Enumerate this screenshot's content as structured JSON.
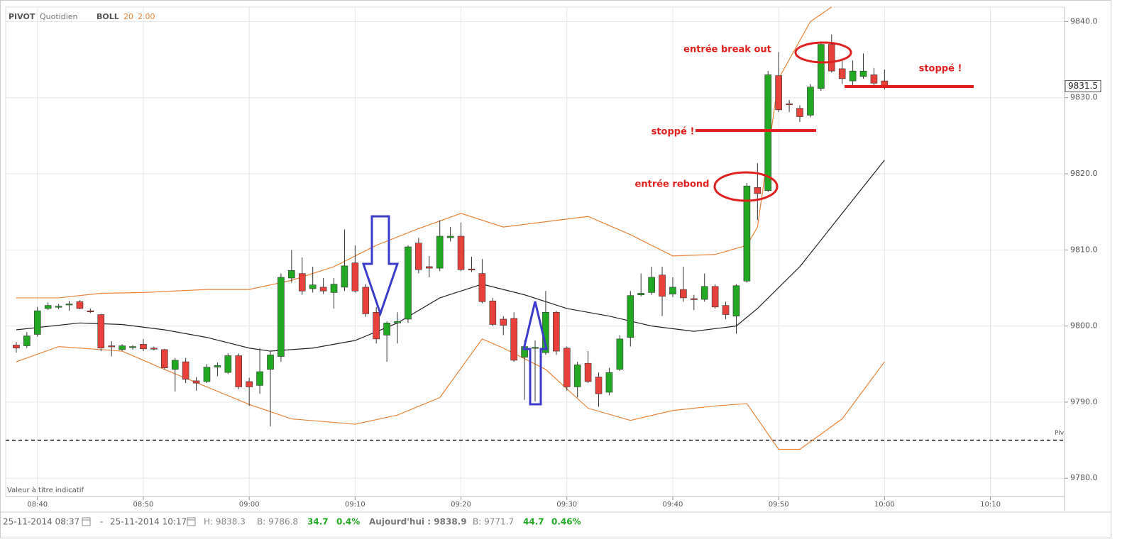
{
  "chart_data": {
    "type": "candlestick",
    "header": [
      "PIVOT",
      "Quotidien",
      "BOLL",
      "20",
      "2.00"
    ],
    "note": "Valeur à titre indicatif",
    "xlim": [
      "08:37",
      "10:17"
    ],
    "xticks": [
      "08:40",
      "08:50",
      "09:00",
      "09:10",
      "09:20",
      "09:30",
      "09:40",
      "09:50",
      "10:00",
      "10:10"
    ],
    "ylim": [
      9777.6,
      9841.9
    ],
    "yticks": [
      {
        "value": 9780,
        "label": "9780.0"
      },
      {
        "value": 9790,
        "label": "9790.0"
      },
      {
        "value": 9800,
        "label": "9800.0"
      },
      {
        "value": 9810,
        "label": "9810.0"
      },
      {
        "value": 9820,
        "label": "9820.0"
      },
      {
        "value": 9830,
        "label": "9830.0"
      },
      {
        "value": 9840,
        "label": "9840.0"
      }
    ],
    "grid": true,
    "up_color": "#22a822",
    "down_color": "#e8403a",
    "candles": {
      "x": [
        "08:38",
        "08:39",
        "08:40",
        "08:41",
        "08:42",
        "08:43",
        "08:44",
        "08:45",
        "08:46",
        "08:47",
        "08:48",
        "08:49",
        "08:50",
        "08:51",
        "08:52",
        "08:53",
        "08:54",
        "08:55",
        "08:56",
        "08:57",
        "08:58",
        "08:59",
        "09:00",
        "09:01",
        "09:02",
        "09:03",
        "09:04",
        "09:05",
        "09:06",
        "09:07",
        "09:08",
        "09:09",
        "09:10",
        "09:11",
        "09:12",
        "09:13",
        "09:14",
        "09:15",
        "09:16",
        "09:17",
        "09:18",
        "09:19",
        "09:20",
        "09:21",
        "09:22",
        "09:23",
        "09:24",
        "09:25",
        "09:26",
        "09:27",
        "09:28",
        "09:29",
        "09:30",
        "09:31",
        "09:32",
        "09:33",
        "09:34",
        "09:35",
        "09:36",
        "09:37",
        "09:38",
        "09:39",
        "09:40",
        "09:41",
        "09:42",
        "09:43",
        "09:44",
        "09:45",
        "09:46",
        "09:47",
        "09:48",
        "09:49",
        "09:50",
        "09:51",
        "09:52",
        "09:53",
        "09:54",
        "09:55",
        "09:56",
        "09:57",
        "09:58",
        "09:59",
        "10:00"
      ],
      "open": [
        9797.5,
        9797.4,
        9798.9,
        9802.3,
        9802.5,
        9802.8,
        9803.2,
        9802.0,
        9801.5,
        9797.4,
        9796.9,
        9797.2,
        9797.6,
        9797.1,
        9796.9,
        9794.3,
        9795.3,
        9792.8,
        9792.7,
        9794.6,
        9793.9,
        9796.1,
        9792.7,
        9792.2,
        9794.3,
        9796.0,
        9806.3,
        9806.9,
        9804.9,
        9805.1,
        9804.4,
        9805.1,
        9808.3,
        9805.1,
        9801.8,
        9798.8,
        9800.4,
        9800.9,
        9810.9,
        9807.8,
        9807.6,
        9811.6,
        9811.8,
        9807.5,
        9806.9,
        9803.3,
        9800.9,
        9801.0,
        9795.9,
        9797.1,
        9796.5,
        9801.8,
        9797.1,
        9792.0,
        9795.1,
        9793.3,
        9791.3,
        9794.3,
        9798.5,
        9804.1,
        9804.4,
        9806.7,
        9804.2,
        9804.8,
        9803.6,
        9803.5,
        9805.2,
        9802.7,
        9801.3,
        9805.9,
        9818.2,
        9817.8,
        9832.9,
        9829.2,
        9828.6,
        9827.7,
        9831.2,
        9837.0,
        9833.8,
        9832.2,
        9832.8,
        9833.0,
        9832.2
      ],
      "high": [
        9797.9,
        9799.2,
        9802.5,
        9803.1,
        9802.9,
        9803.3,
        9803.4,
        9802.3,
        9801.6,
        9798.0,
        9797.6,
        9797.5,
        9798.3,
        9797.3,
        9797.0,
        9795.8,
        9795.8,
        9793.3,
        9795.0,
        9795.2,
        9796.4,
        9796.4,
        9793.2,
        9797.1,
        9796.7,
        9806.9,
        9810.0,
        9809.0,
        9807.8,
        9806.3,
        9806.3,
        9812.7,
        9810.6,
        9805.5,
        9802.5,
        9800.6,
        9801.8,
        9810.6,
        9811.6,
        9809.2,
        9813.9,
        9813.0,
        9813.6,
        9809.1,
        9808.8,
        9803.7,
        9801.3,
        9801.8,
        9798.1,
        9798.1,
        9804.6,
        9802.0,
        9797.3,
        9795.3,
        9796.7,
        9793.9,
        9794.5,
        9798.8,
        9804.6,
        9806.9,
        9807.8,
        9807.8,
        9806.4,
        9807.8,
        9804.1,
        9806.9,
        9805.5,
        9803.2,
        9805.5,
        9818.8,
        9821.4,
        9833.5,
        9836.0,
        9829.7,
        9829.0,
        9831.8,
        9837.4,
        9838.3,
        9834.9,
        9834.9,
        9835.8,
        9833.9,
        9833.7
      ],
      "low": [
        9796.5,
        9797.1,
        9798.6,
        9802.1,
        9802.2,
        9802.0,
        9802.2,
        9801.7,
        9796.7,
        9796.0,
        9796.7,
        9796.9,
        9796.7,
        9796.8,
        9794.3,
        9791.4,
        9792.5,
        9791.5,
        9792.5,
        9793.4,
        9793.7,
        9791.7,
        9789.5,
        9791.1,
        9786.8,
        9795.3,
        9805.7,
        9804.1,
        9804.4,
        9804.2,
        9802.3,
        9804.6,
        9804.4,
        9801.2,
        9797.7,
        9795.3,
        9797.7,
        9800.4,
        9806.9,
        9806.4,
        9807.2,
        9811.1,
        9807.2,
        9807.1,
        9803.0,
        9800.0,
        9798.8,
        9795.3,
        9790.3,
        9790.1,
        9796.2,
        9796.2,
        9791.5,
        9790.6,
        9792.5,
        9789.4,
        9790.9,
        9794.1,
        9797.3,
        9803.9,
        9804.1,
        9801.3,
        9803.8,
        9803.2,
        9802.1,
        9803.2,
        9802.3,
        9800.9,
        9799.0,
        9805.7,
        9813.9,
        9817.6,
        9828.1,
        9828.1,
        9826.8,
        9827.4,
        9830.9,
        9833.3,
        9831.8,
        9831.6,
        9832.5,
        9831.6,
        9831.1
      ],
      "close": [
        9797.1,
        9798.7,
        9802.0,
        9802.7,
        9802.6,
        9802.9,
        9802.3,
        9801.9,
        9797.1,
        9797.3,
        9797.4,
        9797.3,
        9797.0,
        9797.0,
        9794.5,
        9795.5,
        9793.0,
        9792.5,
        9794.6,
        9794.8,
        9796.1,
        9792.0,
        9792.0,
        9794.0,
        9796.2,
        9806.4,
        9807.3,
        9804.6,
        9805.4,
        9804.6,
        9805.5,
        9807.9,
        9804.6,
        9801.6,
        9798.3,
        9800.4,
        9800.6,
        9810.4,
        9807.4,
        9807.6,
        9811.8,
        9811.8,
        9807.4,
        9807.4,
        9803.2,
        9800.2,
        9800.1,
        9795.5,
        9797.3,
        9797.2,
        9801.8,
        9796.7,
        9792.0,
        9794.9,
        9792.7,
        9791.1,
        9793.9,
        9798.3,
        9804.0,
        9804.3,
        9806.4,
        9803.9,
        9805.1,
        9803.7,
        9803.5,
        9805.2,
        9802.5,
        9801.5,
        9805.3,
        9818.4,
        9817.4,
        9833.0,
        9828.4,
        9829.1,
        9827.5,
        9831.4,
        9837.0,
        9833.5,
        9832.5,
        9833.5,
        9833.5,
        9831.9,
        9831.4
      ]
    },
    "bands": [
      {
        "color": "#e8843a",
        "x": [
          "08:38",
          "08:42",
          "08:46",
          "08:50",
          "08:56",
          "09:00",
          "09:04",
          "09:08",
          "09:12",
          "09:16",
          "09:20",
          "09:24",
          "09:28",
          "09:32",
          "09:36",
          "09:40",
          "09:44",
          "09:47",
          "09:48",
          "09:50",
          "09:53",
          "09:55"
        ],
        "values": [
          9803.7,
          9803.7,
          9804.3,
          9804.4,
          9804.8,
          9804.8,
          9806.0,
          9807.8,
          9810.6,
          9812.8,
          9814.8,
          9813.0,
          9813.7,
          9814.4,
          9812.0,
          9809.2,
          9809.4,
          9810.6,
          9813.0,
          9832.5,
          9840.0,
          9841.9
        ]
      },
      {
        "color": "#222222",
        "x": [
          "08:38",
          "08:44",
          "08:48",
          "08:52",
          "08:56",
          "09:00",
          "09:02",
          "09:06",
          "09:10",
          "09:14",
          "09:18",
          "09:22",
          "09:26",
          "09:30",
          "09:34",
          "09:38",
          "09:42",
          "09:46",
          "09:48",
          "09:52",
          "09:56",
          "10:00"
        ],
        "values": [
          9799.5,
          9800.4,
          9800.2,
          9799.5,
          9798.5,
          9797.1,
          9796.7,
          9797.1,
          9798.1,
          9800.4,
          9803.7,
          9805.5,
          9804.1,
          9802.3,
          9801.3,
          9800.0,
          9799.3,
          9800.0,
          9802.3,
          9807.8,
          9814.8,
          9821.8
        ]
      },
      {
        "color": "#e8843a",
        "x": [
          "08:38",
          "08:42",
          "08:48",
          "08:52",
          "08:56",
          "09:00",
          "09:04",
          "09:10",
          "09:14",
          "09:18",
          "09:22",
          "09:24",
          "09:28",
          "09:32",
          "09:36",
          "09:40",
          "09:44",
          "09:47",
          "09:50",
          "09:52",
          "09:56",
          "10:00"
        ],
        "values": [
          9795.3,
          9797.3,
          9796.7,
          9794.3,
          9792.0,
          9789.7,
          9787.8,
          9787.1,
          9788.3,
          9790.6,
          9798.3,
          9797.1,
          9794.3,
          9789.2,
          9787.6,
          9788.9,
          9789.5,
          9789.8,
          9783.8,
          9783.8,
          9787.8,
          9795.3
        ]
      }
    ],
    "pivot": {
      "label": "Piv",
      "value": 9785
    },
    "last_price": 9831.5,
    "annotations": [
      "entrée break out",
      "stoppé !",
      "entrée rebond",
      "stoppé !"
    ],
    "footer": [
      "25-11-2014 08:37",
      "-",
      "25-11-2014 10:17",
      "H: 9838.3",
      "B: 9786.8",
      "34.7",
      "0.4%",
      "Aujourd'hui : 9838.9",
      "B: 9771.7",
      "44.7",
      "0.46%"
    ]
  }
}
